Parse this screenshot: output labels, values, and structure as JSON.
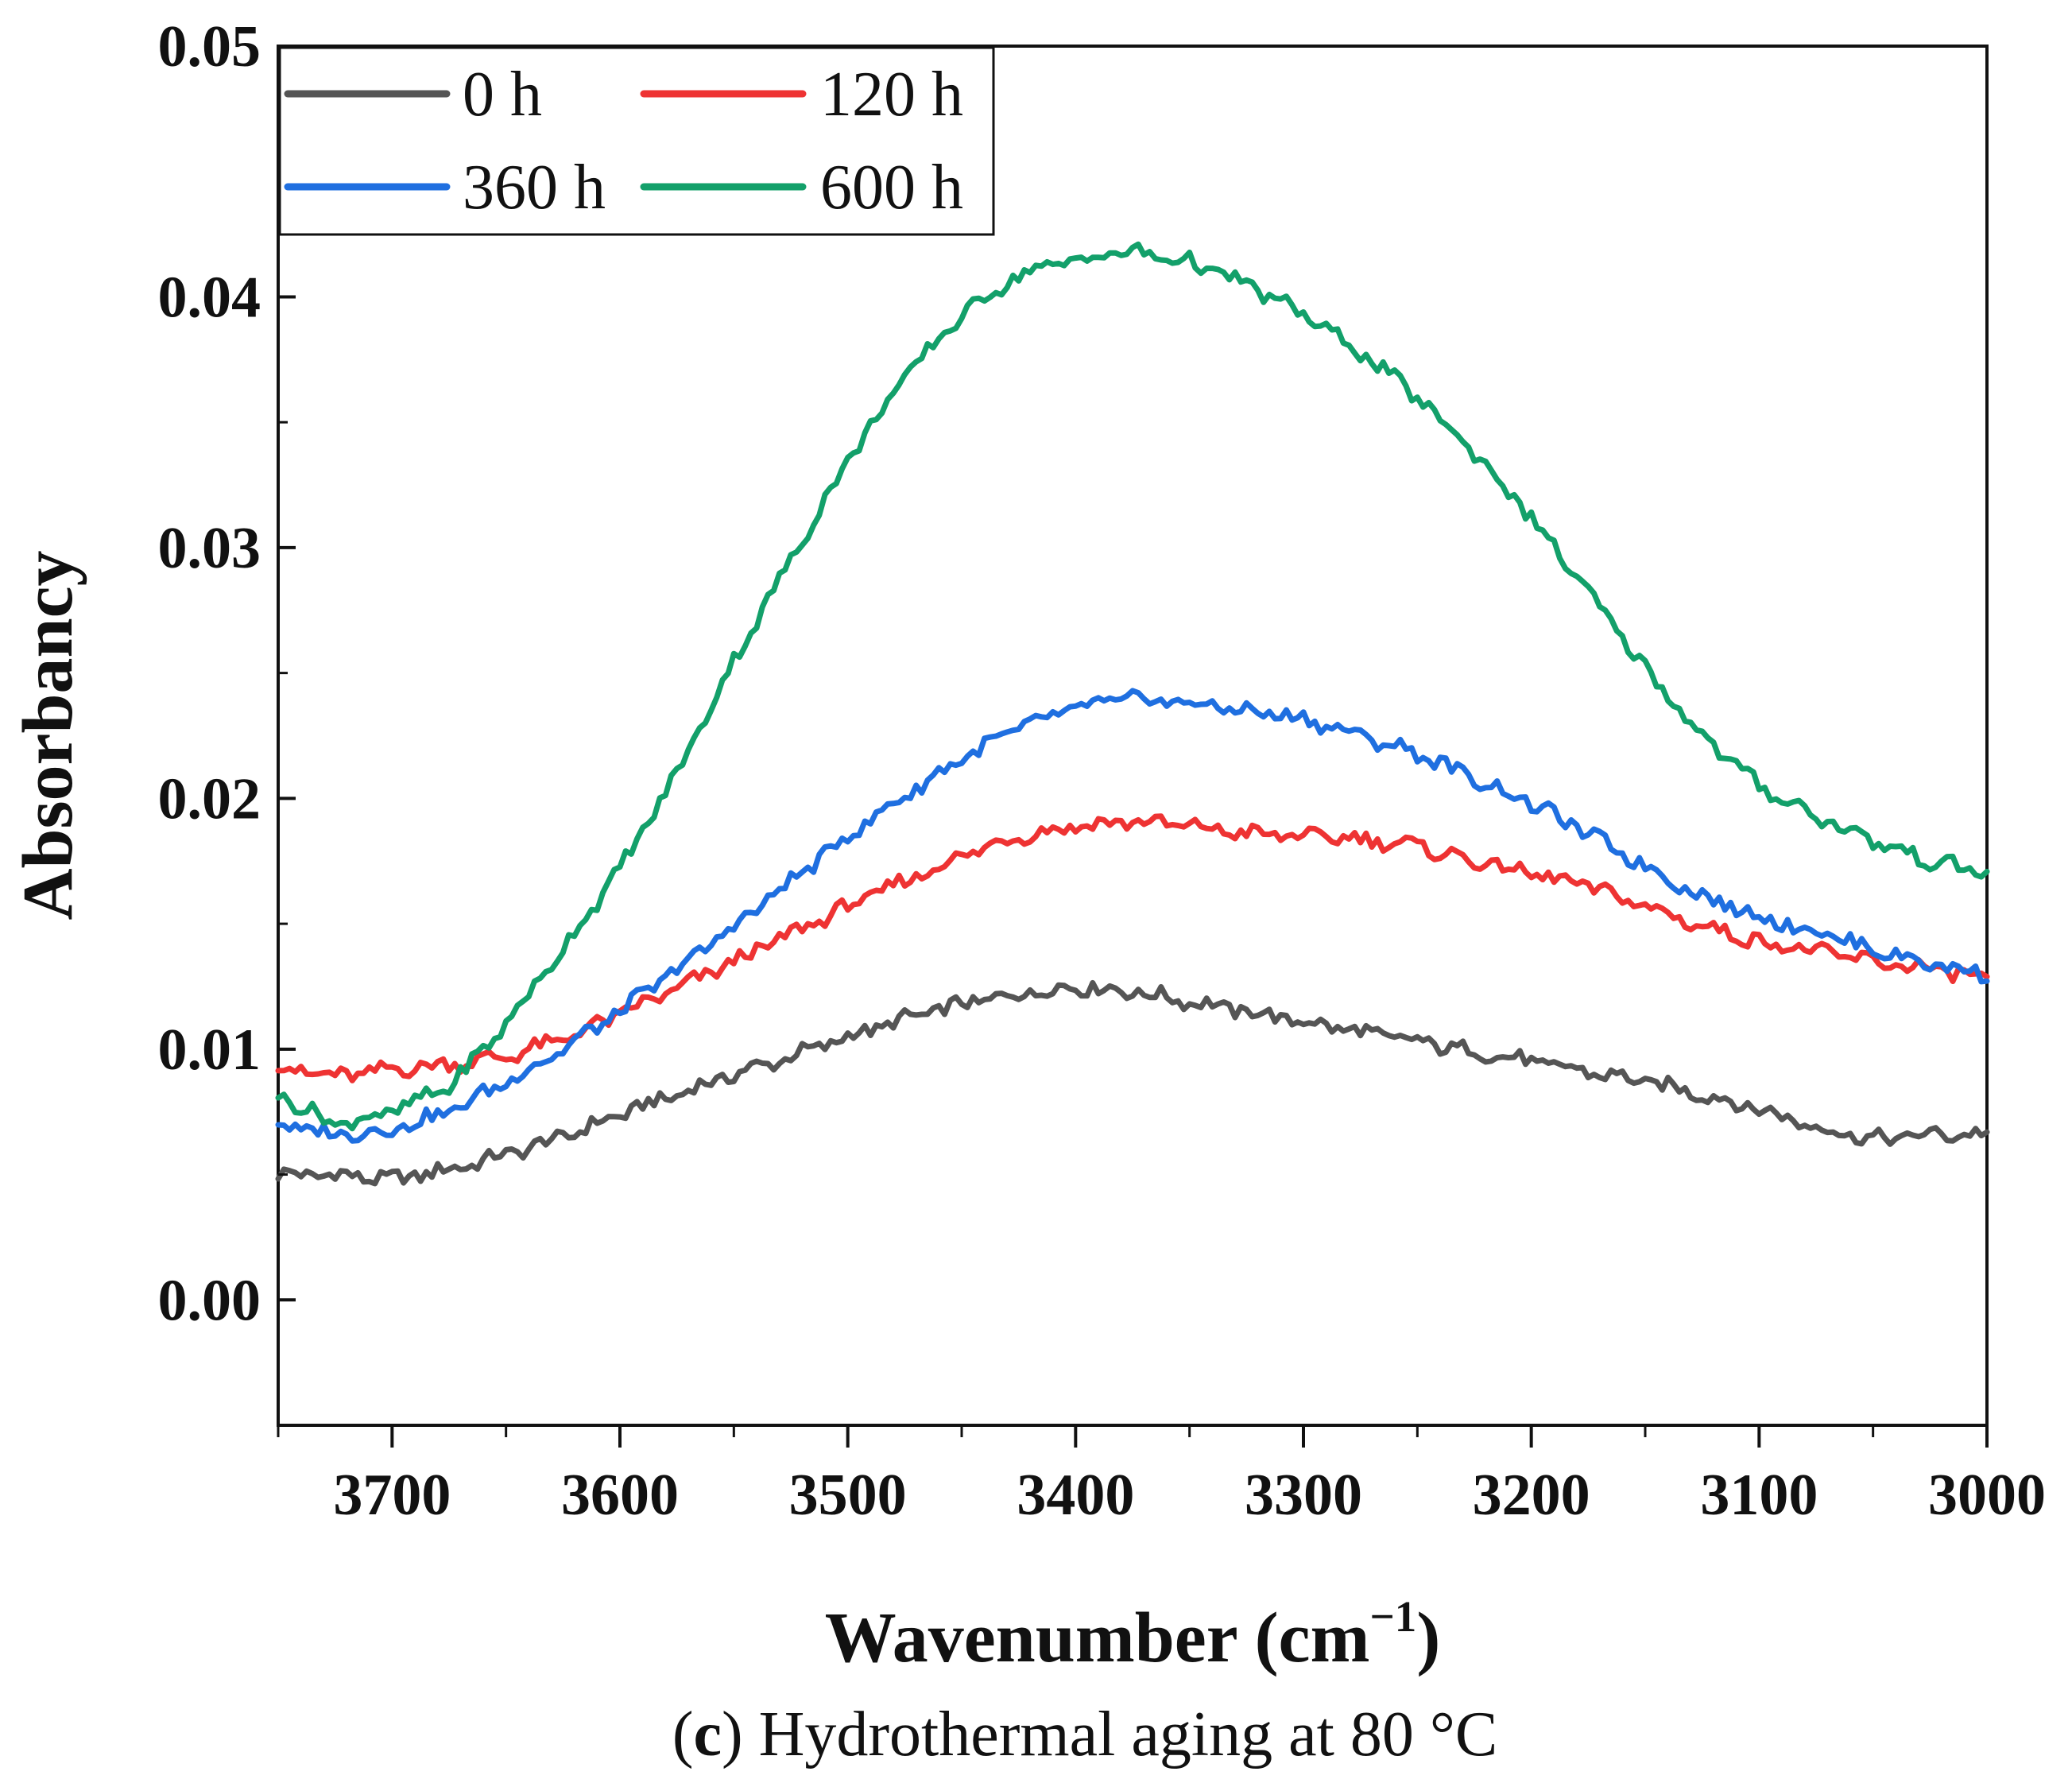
{
  "chart_data": {
    "type": "line",
    "title": "",
    "caption_prefix": "(",
    "caption_letter": "c",
    "caption_rest": ") Hydrothermal aging at 80 °C",
    "xlabel_main": "Wavenumber (cm",
    "xlabel_sup": "−1",
    "xlabel_close": ")",
    "ylabel": "Absorbancy",
    "xlim": [
      3750,
      3000
    ],
    "ylim": [
      -0.005,
      0.05
    ],
    "x_ticks": [
      3700,
      3600,
      3500,
      3400,
      3300,
      3200,
      3100,
      3000
    ],
    "x_tick_labels": [
      "3700",
      "3600",
      "3500",
      "3400",
      "3300",
      "3200",
      "3100",
      "3000"
    ],
    "y_ticks": [
      0.0,
      0.01,
      0.02,
      0.03,
      0.04,
      0.05
    ],
    "y_tick_labels": [
      "0.00",
      "0.01",
      "0.02",
      "0.03",
      "0.04",
      "0.05"
    ],
    "legend_position": "top-left",
    "series": [
      {
        "name": "0 h",
        "color": "#555555",
        "x": [
          3750,
          3725,
          3700,
          3675,
          3650,
          3625,
          3600,
          3575,
          3550,
          3525,
          3500,
          3475,
          3450,
          3425,
          3400,
          3375,
          3350,
          3325,
          3300,
          3275,
          3250,
          3225,
          3200,
          3175,
          3150,
          3125,
          3100,
          3075,
          3050,
          3025,
          3000
        ],
        "y": [
          0.005,
          0.005,
          0.0048,
          0.0052,
          0.0058,
          0.0065,
          0.0074,
          0.0082,
          0.009,
          0.0097,
          0.0105,
          0.0112,
          0.0118,
          0.0122,
          0.0125,
          0.0123,
          0.0119,
          0.0115,
          0.0111,
          0.0107,
          0.0103,
          0.0099,
          0.0095,
          0.0091,
          0.0087,
          0.0082,
          0.0076,
          0.0069,
          0.0064,
          0.0066,
          0.0066
        ]
      },
      {
        "name": "120 h",
        "color": "#ee3333",
        "x": [
          3750,
          3725,
          3700,
          3675,
          3650,
          3625,
          3600,
          3575,
          3550,
          3525,
          3500,
          3475,
          3450,
          3425,
          3400,
          3375,
          3350,
          3325,
          3300,
          3275,
          3250,
          3225,
          3200,
          3175,
          3150,
          3125,
          3100,
          3075,
          3050,
          3025,
          3000
        ],
        "y": [
          0.0093,
          0.0089,
          0.0092,
          0.0094,
          0.0097,
          0.0104,
          0.0114,
          0.0124,
          0.0135,
          0.0146,
          0.0157,
          0.0167,
          0.0177,
          0.0185,
          0.0189,
          0.0191,
          0.0189,
          0.0186,
          0.0185,
          0.0184,
          0.0181,
          0.0175,
          0.017,
          0.0165,
          0.0157,
          0.0149,
          0.0143,
          0.0139,
          0.0135,
          0.0132,
          0.0128
        ]
      },
      {
        "name": "360 h",
        "color": "#1f6fe0",
        "x": [
          3750,
          3725,
          3700,
          3675,
          3650,
          3625,
          3600,
          3575,
          3550,
          3525,
          3500,
          3475,
          3450,
          3425,
          3400,
          3375,
          3350,
          3325,
          3300,
          3275,
          3250,
          3225,
          3200,
          3175,
          3150,
          3125,
          3100,
          3075,
          3050,
          3025,
          3000
        ],
        "y": [
          0.007,
          0.0066,
          0.0068,
          0.0075,
          0.0087,
          0.01,
          0.0115,
          0.0132,
          0.0149,
          0.0167,
          0.0185,
          0.0201,
          0.0216,
          0.0228,
          0.0236,
          0.024,
          0.0238,
          0.0235,
          0.0232,
          0.0225,
          0.0218,
          0.0208,
          0.0198,
          0.0186,
          0.0173,
          0.0161,
          0.0153,
          0.0147,
          0.014,
          0.0134,
          0.013
        ]
      },
      {
        "name": "600 h",
        "color": "#13a06a",
        "x": [
          3750,
          3725,
          3700,
          3675,
          3650,
          3625,
          3600,
          3575,
          3550,
          3525,
          3500,
          3475,
          3450,
          3425,
          3400,
          3375,
          3350,
          3325,
          3300,
          3275,
          3250,
          3225,
          3200,
          3175,
          3150,
          3125,
          3100,
          3075,
          3050,
          3025,
          3000
        ],
        "y": [
          0.0082,
          0.007,
          0.0075,
          0.0085,
          0.011,
          0.014,
          0.0172,
          0.021,
          0.0255,
          0.0295,
          0.0335,
          0.0368,
          0.0393,
          0.0409,
          0.0415,
          0.0418,
          0.0414,
          0.0405,
          0.0393,
          0.0378,
          0.036,
          0.0338,
          0.0312,
          0.0282,
          0.0252,
          0.0225,
          0.0205,
          0.0193,
          0.0183,
          0.0175,
          0.017
        ]
      }
    ]
  }
}
